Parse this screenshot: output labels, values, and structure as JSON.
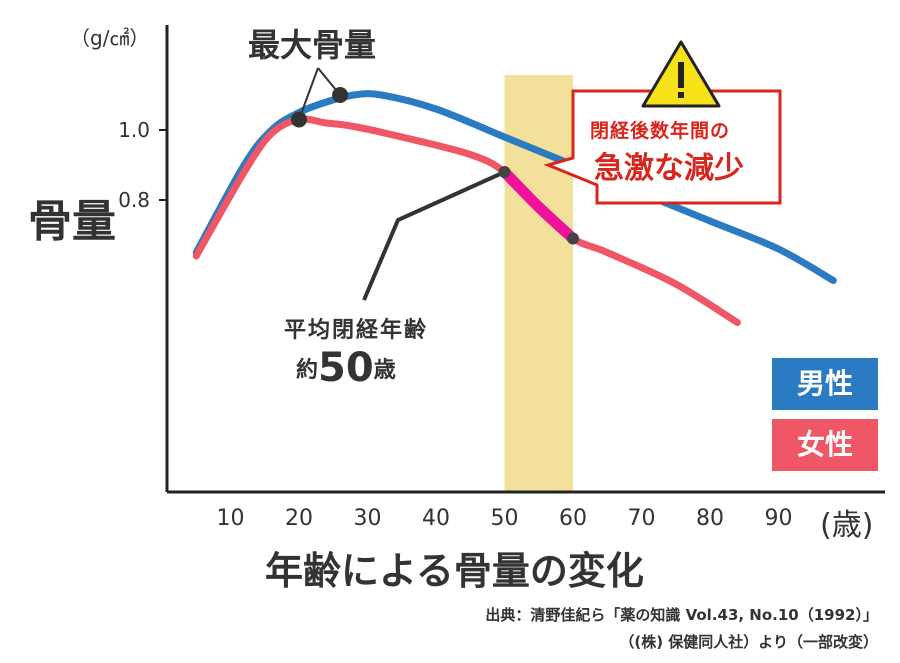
{
  "chart_data": {
    "type": "line",
    "ylabel": "骨量",
    "yunit": "（g/㎠）",
    "y_ticks": [
      1.0,
      0.8
    ],
    "y_tick_labels": [
      "1.0",
      "0.8"
    ],
    "ylim": [
      0.0,
      1.2
    ],
    "xlim": [
      0,
      100
    ],
    "x_ticks": [
      10,
      20,
      30,
      40,
      50,
      60,
      70,
      80,
      90
    ],
    "x_tick_labels": [
      "10",
      "20",
      "30",
      "40",
      "50",
      "60",
      "70",
      "80",
      "90"
    ],
    "x_unit": "(歳)",
    "title": "年齢による骨量の変化",
    "grid": false,
    "legend_position": "bottom-right",
    "series": [
      {
        "name": "男性",
        "color": "#2b7bc2",
        "x": [
          5,
          12,
          16,
          20,
          24,
          28,
          32,
          40,
          50,
          60,
          70,
          80,
          90,
          98
        ],
        "y": [
          0.65,
          0.9,
          1.0,
          1.05,
          1.08,
          1.1,
          1.1,
          1.06,
          0.98,
          0.9,
          0.82,
          0.74,
          0.66,
          0.57
        ]
      },
      {
        "name": "女性",
        "color": "#ef5666",
        "x": [
          5,
          12,
          16,
          20,
          24,
          28,
          35,
          45,
          50,
          55,
          60,
          65,
          75,
          84
        ],
        "y": [
          0.64,
          0.88,
          0.99,
          1.03,
          1.02,
          1.01,
          0.98,
          0.93,
          0.88,
          0.78,
          0.69,
          0.65,
          0.56,
          0.45
        ]
      }
    ],
    "highlight_segment": {
      "series": "女性",
      "from": 50,
      "to": 60,
      "color": "#f0129a"
    },
    "shaded_band": {
      "from": 50,
      "to": 60,
      "color": "#f1dc8a"
    },
    "peak_markers": [
      {
        "series": "女性",
        "x": 20,
        "y": 1.03
      },
      {
        "series": "男性",
        "x": 26,
        "y": 1.1
      }
    ],
    "annotations": {
      "peak": "最大骨量",
      "menopause_line1": "平均閉経年齢",
      "menopause_prefix": "約",
      "menopause_number": "50",
      "menopause_suffix": "歳",
      "warning_line1": "閉経後数年間の",
      "warning_line2": "急激な減少",
      "warning_icon": "warning-icon"
    }
  },
  "legend": {
    "male": "男性",
    "female": "女性"
  },
  "source": {
    "line1": "出典：清野佳紀ら「薬の知識 Vol.43, No.10（1992）」",
    "line2": "（(株) 保健同人社）より（一部改変）"
  },
  "colors": {
    "axis": "#222222",
    "text": "#333333",
    "warning_red": "#d9261c",
    "warning_yellow": "#f7e21a"
  }
}
